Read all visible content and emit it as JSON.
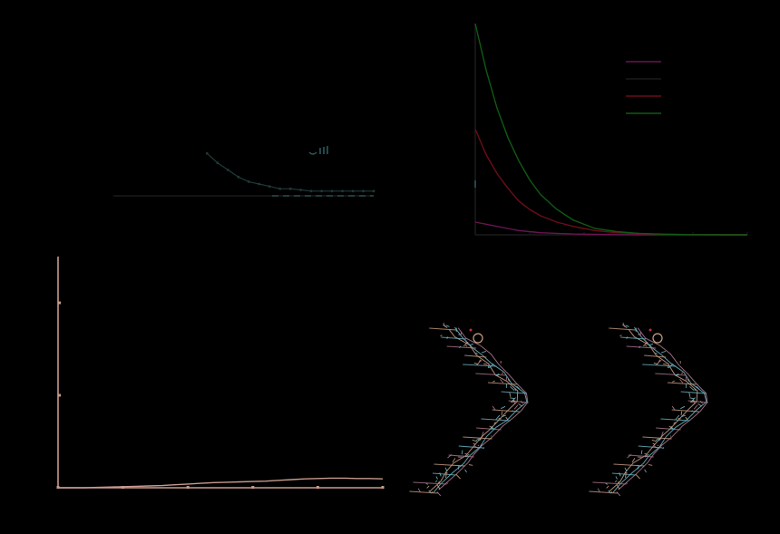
{
  "colors": {
    "background": "#000000",
    "dark_axis": "#1a1a1a",
    "dark_teal": "#1f3a38",
    "teal_marker": "#2a5a5e",
    "magenta": "#6a1450",
    "dark_red": "#6b0e18",
    "green": "#0f5a14",
    "tan": "#c79a8e",
    "mol_tan": "#caa084",
    "mol_cyan": "#6fb7c5",
    "mol_pink": "#b07a90"
  },
  "chart_data": [
    {
      "id": "panel-a",
      "type": "scatter",
      "x": [
        0.18,
        0.2,
        0.22,
        0.24,
        0.26,
        0.28,
        0.3,
        0.32,
        0.34,
        0.36,
        0.38,
        0.4,
        0.42,
        0.44,
        0.46,
        0.48,
        0.5
      ],
      "series": [
        {
          "values": [
            0.18,
            0.14,
            0.11,
            0.08,
            0.06,
            0.05,
            0.04,
            0.03,
            0.03,
            0.025,
            0.02,
            0.02,
            0.02,
            0.02,
            0.02,
            0.02,
            0.02
          ]
        }
      ],
      "xlim": [
        0.0,
        0.5
      ],
      "ylim": [
        0.0,
        0.6
      ],
      "grid": false
    },
    {
      "id": "panel-b",
      "type": "line",
      "x": [
        0,
        2,
        4,
        6,
        8,
        10,
        12,
        15,
        18,
        22,
        26,
        30,
        35,
        40,
        45,
        50
      ],
      "series": [
        {
          "values": [
            0.06,
            0.05,
            0.04,
            0.03,
            0.02,
            0.015,
            0.01,
            0.007,
            0.004,
            0.002,
            0.001,
            0,
            0,
            0,
            0,
            0
          ]
        },
        {
          "values": [
            0.5,
            0.38,
            0.29,
            0.22,
            0.16,
            0.12,
            0.09,
            0.06,
            0.04,
            0.02,
            0.01,
            0.005,
            0.002,
            0.001,
            0,
            0
          ]
        },
        {
          "values": [
            1.0,
            0.78,
            0.6,
            0.46,
            0.35,
            0.26,
            0.19,
            0.12,
            0.07,
            0.03,
            0.015,
            0.007,
            0.003,
            0.001,
            0,
            0
          ]
        }
      ],
      "xlim": [
        0,
        50
      ],
      "ylim": [
        0,
        1.0
      ],
      "legend_position": "top-right",
      "grid": false
    },
    {
      "id": "panel-c",
      "type": "line",
      "x": [
        0,
        1,
        2,
        3,
        4,
        5,
        6,
        7,
        8,
        9,
        10,
        11,
        12,
        13,
        14,
        15,
        16,
        17,
        18,
        19,
        20,
        21,
        22,
        23,
        24,
        25
      ],
      "series": [
        {
          "values": [
            0,
            0,
            0,
            0.002,
            0.004,
            0.006,
            0.008,
            0.01,
            0.012,
            0.016,
            0.02,
            0.024,
            0.028,
            0.03,
            0.032,
            0.034,
            0.036,
            0.04,
            0.044,
            0.048,
            0.05,
            0.052,
            0.052,
            0.05,
            0.05,
            0.048
          ]
        }
      ],
      "xlim": [
        0,
        25
      ],
      "ylim": [
        0,
        1.25
      ],
      "grid": false
    }
  ]
}
